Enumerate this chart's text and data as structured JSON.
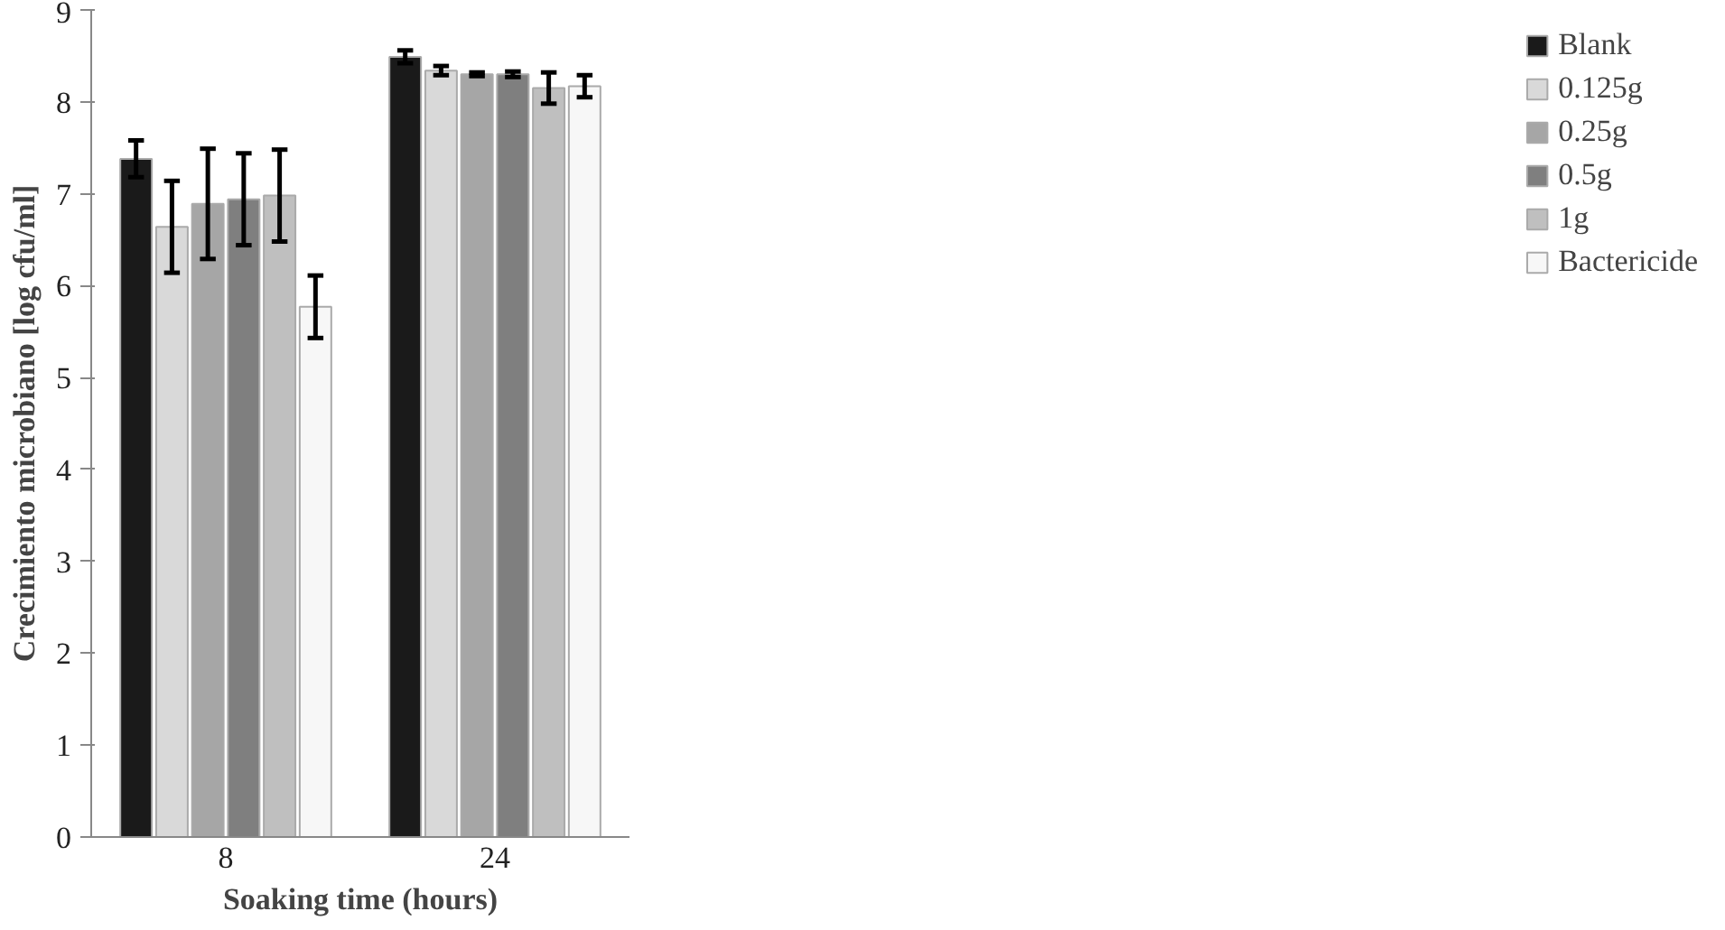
{
  "chart_data": {
    "type": "bar",
    "xlabel": "Soaking time (hours)",
    "ylabel": "Crecimiento microbiano [log cfu/ml]",
    "categories": [
      "8",
      "24"
    ],
    "ylim": [
      0,
      9
    ],
    "yticks": [
      0,
      1,
      2,
      3,
      4,
      5,
      6,
      7,
      8,
      9
    ],
    "grid": false,
    "legend": "right",
    "series": [
      {
        "name": "Blank",
        "color": "#1a1a1a",
        "values": [
          7.38,
          8.49
        ],
        "errors": [
          0.2,
          0.07
        ]
      },
      {
        "name": "0.125g",
        "color": "#d9d9d9",
        "values": [
          6.64,
          8.34
        ],
        "errors": [
          0.5,
          0.05
        ]
      },
      {
        "name": "0.25g",
        "color": "#a6a6a6",
        "values": [
          6.89,
          8.3
        ],
        "errors": [
          0.6,
          0.02
        ]
      },
      {
        "name": "0.5g",
        "color": "#7f7f7f",
        "values": [
          6.94,
          8.3
        ],
        "errors": [
          0.5,
          0.03
        ]
      },
      {
        "name": "1g",
        "color": "#bfbfbf",
        "values": [
          6.98,
          8.15
        ],
        "errors": [
          0.5,
          0.17
        ]
      },
      {
        "name": "Bactericide",
        "color": "#f7f7f7",
        "values": [
          5.77,
          8.17
        ],
        "errors": [
          0.34,
          0.12
        ]
      }
    ]
  }
}
